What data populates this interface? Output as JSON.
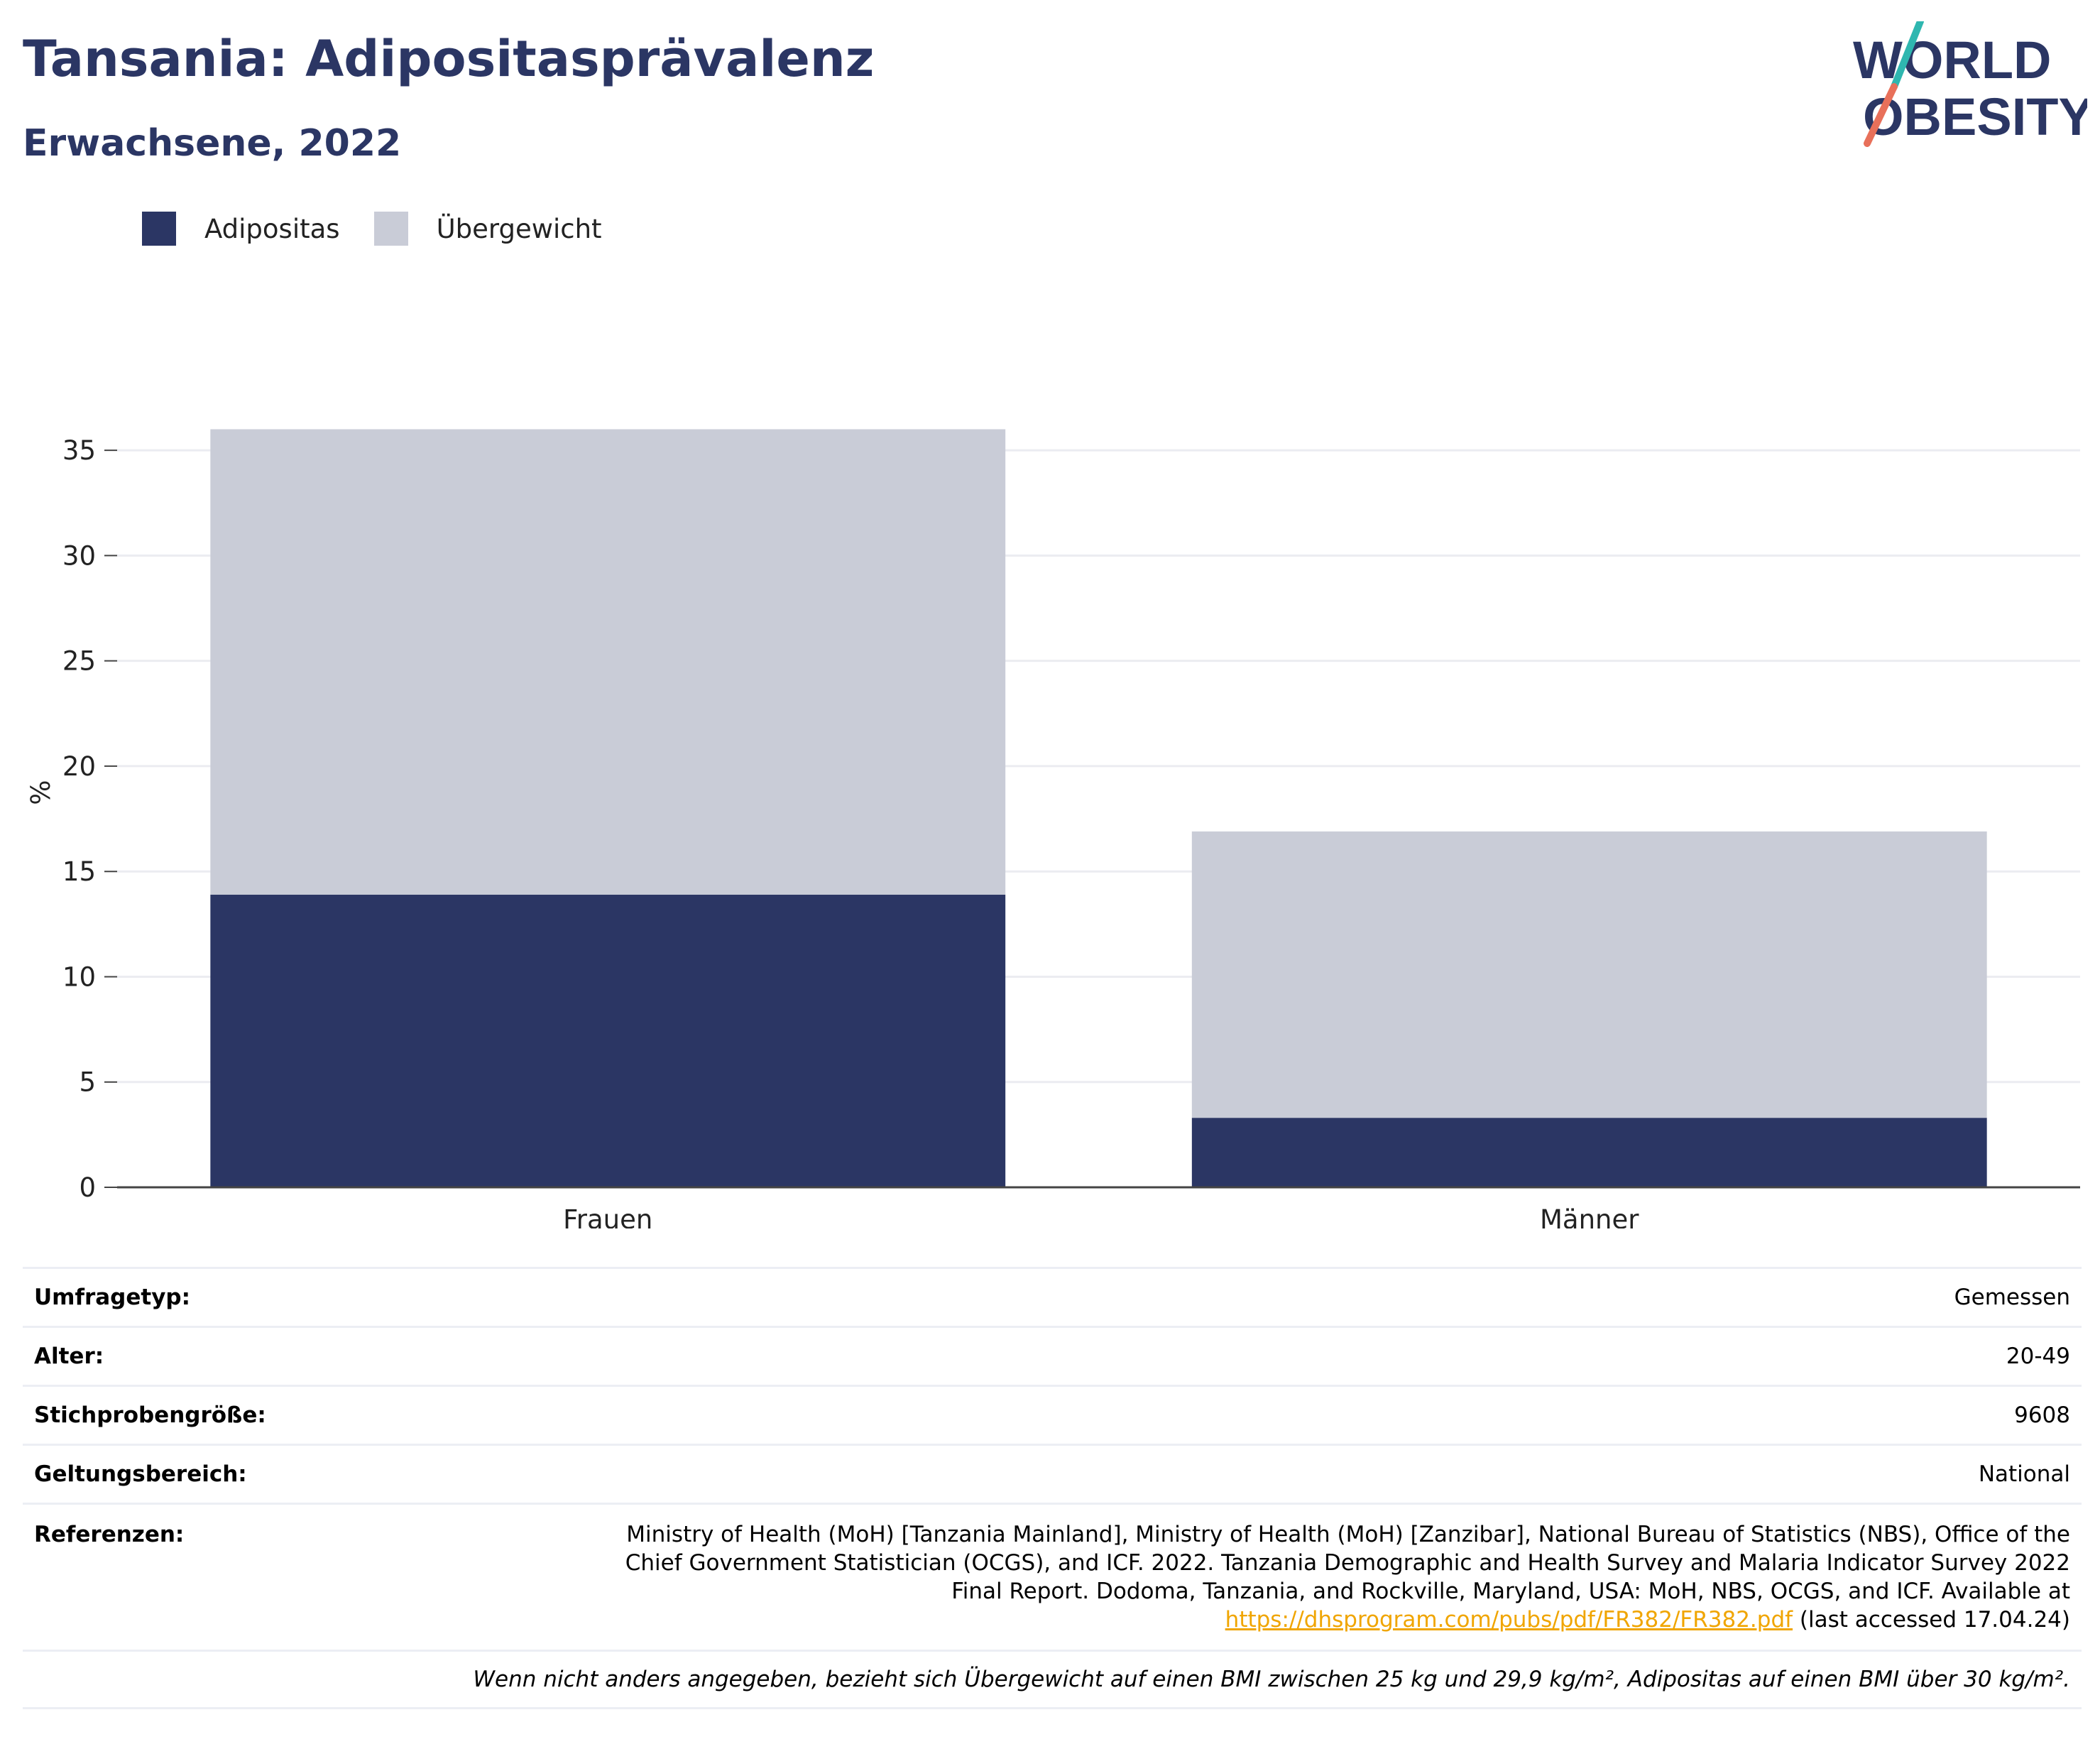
{
  "header": {
    "title": "Tansania: Adipositasprävalenz",
    "subtitle": "Erwachsene, 2022"
  },
  "logo": {
    "line1": "WORLD",
    "line2": "OBESITY"
  },
  "chart_data": {
    "type": "bar",
    "stacked": true,
    "categories": [
      "Frauen",
      "Männer"
    ],
    "series": [
      {
        "name": "Adipositas",
        "values": [
          13.9,
          3.3
        ],
        "color": "#2b3664"
      },
      {
        "name": "Übergewicht",
        "values": [
          22.1,
          13.6
        ],
        "color": "#c9ccd7"
      }
    ],
    "ylabel": "%",
    "xlabel": "",
    "ylim": [
      0,
      37.5
    ],
    "yticks": [
      0,
      5,
      10,
      15,
      20,
      25,
      30,
      35
    ],
    "grid": true,
    "legend_position": "top-left"
  },
  "info": {
    "survey_type_label": "Umfragetyp:",
    "survey_type": "Gemessen",
    "age_label": "Alter:",
    "age": "20-49",
    "sample_label": "Stichprobengröße:",
    "sample": "9608",
    "scope_label": "Geltungsbereich:",
    "scope": "National",
    "refs_label": "Referenzen:",
    "refs_text": "Ministry of Health (MoH) [Tanzania Mainland], Ministry of Health (MoH) [Zanzibar], National Bureau of Statistics (NBS), Office of the Chief Government Statistician (OCGS), and ICF. 2022. Tanzania Demographic and Health Survey and Malaria Indicator Survey 2022 Final Report. Dodoma, Tanzania, and Rockville, Maryland, USA: MoH, NBS, OCGS, and ICF. Available at",
    "refs_link": "https://dhsprogram.com/pubs/pdf/FR382/FR382.pdf",
    "refs_suffix": "(last accessed 17.04.24)",
    "note": "Wenn nicht anders angegeben, bezieht sich Übergewicht auf einen BMI zwischen 25 kg und 29,9 kg/m², Adipositas auf einen BMI über 30 kg/m²."
  }
}
